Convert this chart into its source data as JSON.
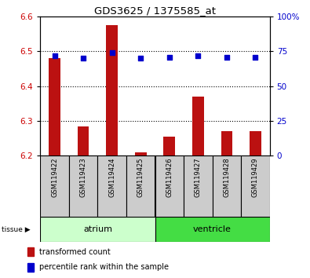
{
  "title": "GDS3625 / 1375585_at",
  "samples": [
    "GSM119422",
    "GSM119423",
    "GSM119424",
    "GSM119425",
    "GSM119426",
    "GSM119427",
    "GSM119428",
    "GSM119429"
  ],
  "red_values": [
    6.48,
    6.285,
    6.575,
    6.21,
    6.255,
    6.37,
    6.27,
    6.27
  ],
  "blue_values": [
    72,
    70,
    74,
    70,
    71,
    72,
    71,
    71
  ],
  "ylim_left": [
    6.2,
    6.6
  ],
  "ylim_right": [
    0,
    100
  ],
  "yticks_left": [
    6.2,
    6.3,
    6.4,
    6.5,
    6.6
  ],
  "yticks_right": [
    0,
    25,
    50,
    75,
    100
  ],
  "ytick_labels_right": [
    "0",
    "25",
    "50",
    "75",
    "100%"
  ],
  "groups": [
    {
      "label": "atrium",
      "start": 0,
      "end": 4,
      "color": "#ccffcc"
    },
    {
      "label": "ventricle",
      "start": 4,
      "end": 8,
      "color": "#44dd44"
    }
  ],
  "bar_color": "#bb1111",
  "dot_color": "#0000cc",
  "bg_color": "#ffffff",
  "tick_label_color_left": "#cc0000",
  "tick_label_color_right": "#0000cc",
  "bar_width": 0.4,
  "legend_red": "transformed count",
  "legend_blue": "percentile rank within the sample",
  "sample_box_color": "#cccccc",
  "grid_lines": [
    6.3,
    6.4,
    6.5
  ]
}
